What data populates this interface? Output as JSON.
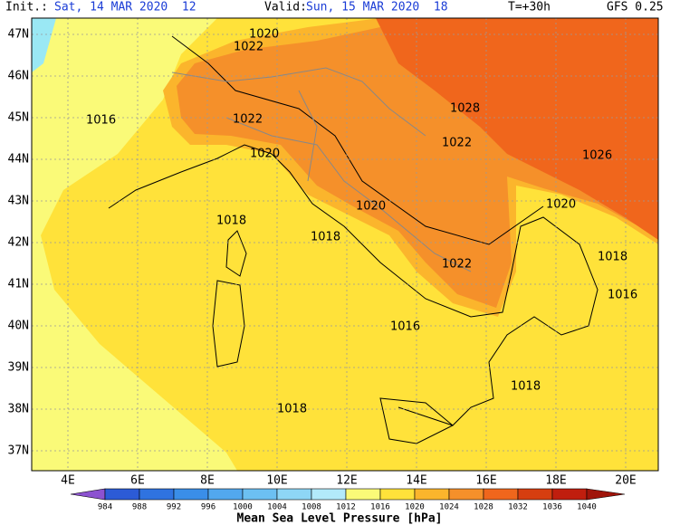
{
  "header": {
    "init_label": "Init.:",
    "init_value": "Sat, 14 MAR 2020  12",
    "valid_label": "Valid:",
    "valid_value": "Sun, 15 MAR 2020  18",
    "lead": "T=+30h",
    "model": "GFS 0.25"
  },
  "map": {
    "lon_labels": [
      "4E",
      "6E",
      "8E",
      "10E",
      "12E",
      "14E",
      "16E",
      "18E",
      "20E"
    ],
    "lat_labels": [
      "47N",
      "46N",
      "45N",
      "44N",
      "43N",
      "42N",
      "41N",
      "40N",
      "39N",
      "38N",
      "37N"
    ],
    "isobar_labels": [
      "1020",
      "1022",
      "1016",
      "1022",
      "1020",
      "1028",
      "1022",
      "1026",
      "1020",
      "1020",
      "1018",
      "1018",
      "1022",
      "1018",
      "1016",
      "1016",
      "1018",
      "1018"
    ]
  },
  "colorbar": {
    "title": "Mean Sea Level Pressure [hPa]",
    "ticks": [
      984,
      988,
      992,
      996,
      1000,
      1004,
      1008,
      1012,
      1016,
      1020,
      1024,
      1028,
      1032,
      1036,
      1040
    ],
    "colors": [
      "#8c52d0",
      "#2c5bd6",
      "#2f73e0",
      "#3a8ee8",
      "#52a8ee",
      "#6cc0f2",
      "#8ed6f6",
      "#b2eafa",
      "#fafa78",
      "#ffe23a",
      "#fbb52c",
      "#f5902a",
      "#f0661c",
      "#d63e10",
      "#c01e0e",
      "#a0140a"
    ]
  }
}
